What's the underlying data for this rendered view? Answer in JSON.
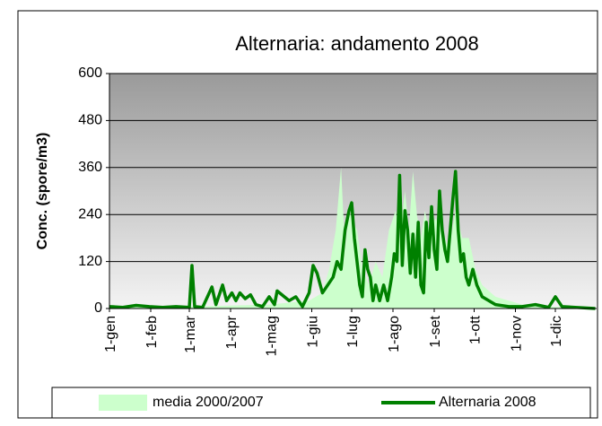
{
  "chart_data": {
    "type": "line",
    "title": "Alternaria: andamento 2008",
    "y_label": "Conc. (spore/m3)",
    "xlim": [
      0,
      366
    ],
    "ylim": [
      0,
      600
    ],
    "yticks": [
      0,
      120,
      240,
      360,
      480,
      600
    ],
    "xticks": [
      {
        "value": 0,
        "label": "1-gen"
      },
      {
        "value": 31,
        "label": "1-feb"
      },
      {
        "value": 60,
        "label": "1-mar"
      },
      {
        "value": 91,
        "label": "1-apr"
      },
      {
        "value": 121,
        "label": "1-mag"
      },
      {
        "value": 152,
        "label": "1-giu"
      },
      {
        "value": 182,
        "label": "1-lug"
      },
      {
        "value": 213,
        "label": "1-ago"
      },
      {
        "value": 244,
        "label": "1-set"
      },
      {
        "value": 274,
        "label": "1-ott"
      },
      {
        "value": 305,
        "label": "1-nov"
      },
      {
        "value": 335,
        "label": "1-dic"
      }
    ],
    "series": [
      {
        "name": "media 2000/2007",
        "kind": "area",
        "color": "#ccffcc",
        "x": [
          0,
          60,
          120,
          150,
          160,
          165,
          170,
          174,
          177,
          180,
          183,
          186,
          190,
          195,
          200,
          205,
          210,
          215,
          218,
          222,
          225,
          228,
          231,
          234,
          237,
          240,
          245,
          250,
          255,
          260,
          265,
          270,
          275,
          280,
          290,
          300,
          310,
          330,
          365
        ],
        "values": [
          3,
          5,
          10,
          20,
          40,
          100,
          200,
          360,
          150,
          250,
          220,
          200,
          100,
          60,
          120,
          80,
          200,
          250,
          180,
          300,
          200,
          350,
          240,
          180,
          250,
          200,
          230,
          200,
          150,
          250,
          180,
          180,
          100,
          60,
          30,
          20,
          10,
          5,
          0
        ]
      },
      {
        "name": "Alternaria 2008",
        "kind": "line",
        "color": "#008000",
        "x": [
          0,
          10,
          20,
          30,
          40,
          50,
          60,
          62,
          64,
          70,
          77,
          80,
          85,
          88,
          92,
          95,
          98,
          102,
          106,
          110,
          115,
          120,
          124,
          126,
          135,
          140,
          145,
          150,
          153,
          156,
          160,
          164,
          168,
          171,
          174,
          177,
          180,
          182,
          184,
          186,
          188,
          190,
          192,
          194,
          196,
          198,
          200,
          203,
          206,
          209,
          212,
          214,
          216,
          218,
          220,
          222,
          224,
          226,
          228,
          230,
          232,
          234,
          236,
          238,
          240,
          242,
          244,
          246,
          248,
          250,
          252,
          254,
          256,
          258,
          260,
          262,
          264,
          266,
          268,
          270,
          273,
          276,
          280,
          285,
          290,
          300,
          310,
          320,
          330,
          335,
          340,
          350,
          365
        ],
        "values": [
          5,
          3,
          8,
          5,
          3,
          5,
          3,
          110,
          5,
          3,
          55,
          10,
          60,
          20,
          40,
          20,
          40,
          25,
          35,
          10,
          5,
          30,
          10,
          45,
          20,
          30,
          5,
          40,
          110,
          90,
          40,
          60,
          80,
          120,
          100,
          200,
          250,
          270,
          180,
          120,
          60,
          30,
          150,
          100,
          80,
          20,
          60,
          20,
          60,
          20,
          80,
          140,
          120,
          340,
          110,
          250,
          200,
          90,
          190,
          80,
          220,
          60,
          40,
          220,
          130,
          260,
          150,
          100,
          300,
          200,
          150,
          120,
          200,
          280,
          350,
          200,
          120,
          140,
          80,
          60,
          100,
          60,
          30,
          20,
          10,
          5,
          5,
          10,
          3,
          30,
          5,
          3,
          0
        ]
      }
    ]
  }
}
